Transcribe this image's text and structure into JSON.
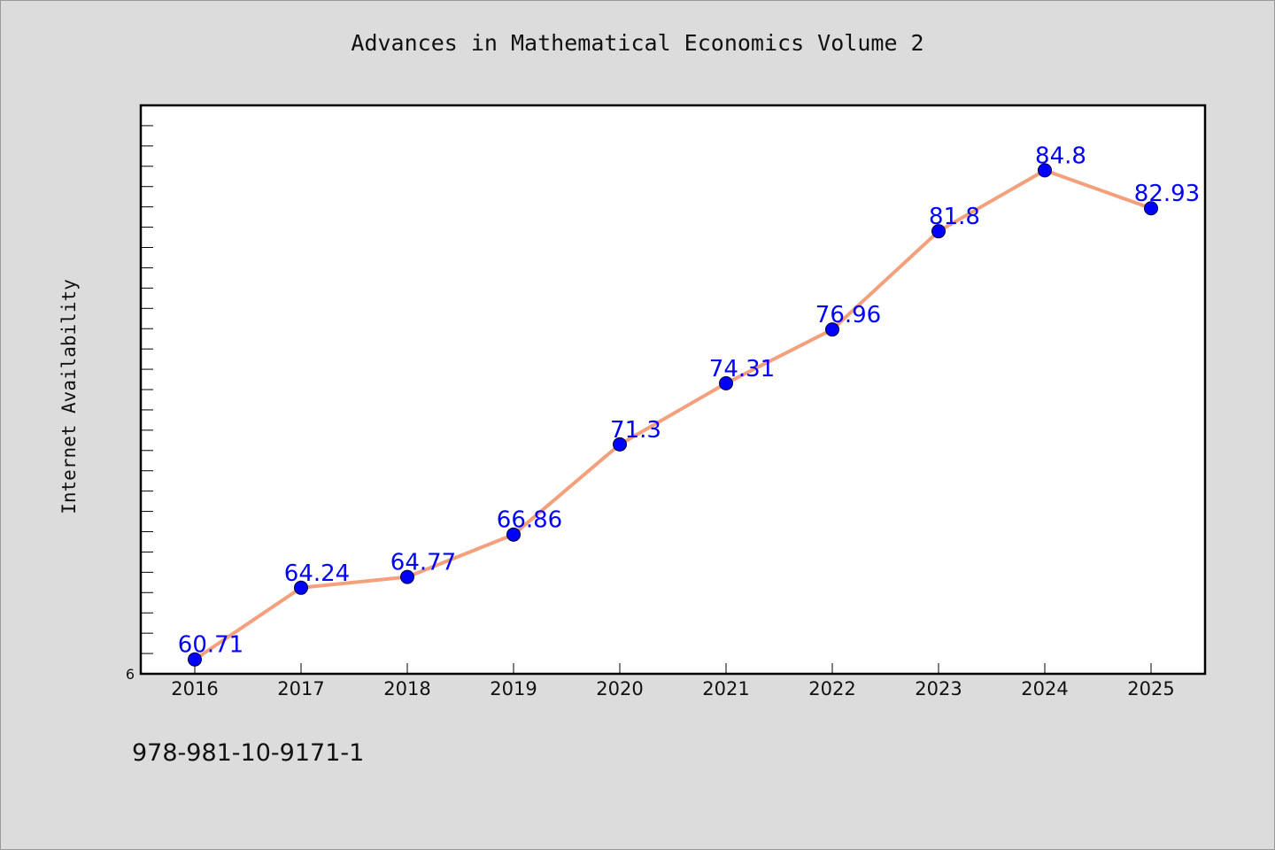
{
  "title": "Advances in Mathematical Economics Volume 2",
  "footer_text": "978-981-10-9171-1",
  "colors": {
    "background": "#dcdcdc",
    "plot_background": "#ffffff",
    "line": "#f4a07c",
    "marker": "#0000ff",
    "data_label": "#0000ff"
  },
  "chart_data": {
    "type": "line",
    "title": "Advances in Mathematical Economics Volume 2",
    "xlabel": "",
    "ylabel": "Internet Availability",
    "categories": [
      "2016",
      "2017",
      "2018",
      "2019",
      "2020",
      "2021",
      "2022",
      "2023",
      "2024",
      "2025"
    ],
    "series": [
      {
        "values": [
          60.71,
          64.24,
          64.77,
          66.86,
          71.3,
          74.31,
          76.96,
          81.8,
          84.8,
          82.93
        ],
        "labels": [
          "60.71",
          "64.24",
          "64.77",
          "66.86",
          "71.3",
          "74.31",
          "76.96",
          "81.8",
          "84.8",
          "82.93"
        ]
      }
    ],
    "y_tick_label": "6",
    "ylim": [
      60,
      88
    ],
    "grid": false,
    "legend": "none"
  }
}
